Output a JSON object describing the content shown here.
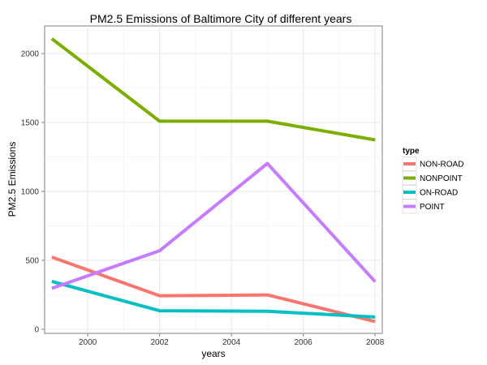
{
  "chart_data": {
    "type": "line",
    "title": "PM2.5 Emissions of Baltimore City of different years",
    "xlabel": "years",
    "ylabel": "PM2.5 Emissions",
    "x": [
      1999,
      2002,
      2005,
      2008
    ],
    "xlim": [
      1998.8,
      2008.2
    ],
    "ylim": [
      -30,
      2200
    ],
    "xticks": [
      2000,
      2002,
      2004,
      2006,
      2008
    ],
    "yticks": [
      0,
      500,
      1000,
      1500,
      2000
    ],
    "grid": true,
    "legend": {
      "title": "type",
      "placement": "right"
    },
    "series": [
      {
        "name": "NON-ROAD",
        "color": "#F8766D",
        "values": [
          522.9,
          242.6,
          248.9,
          55.8
        ]
      },
      {
        "name": "NONPOINT",
        "color": "#7CAE00",
        "values": [
          2107.6,
          1509.5,
          1509.5,
          1373.2
        ]
      },
      {
        "name": "ON-ROAD",
        "color": "#00BFC4",
        "values": [
          346.8,
          134.3,
          130.4,
          88.3
        ]
      },
      {
        "name": "POINT",
        "color": "#C77CFF",
        "values": [
          296.8,
          569.3,
          1202.5,
          344.98
        ]
      }
    ]
  }
}
